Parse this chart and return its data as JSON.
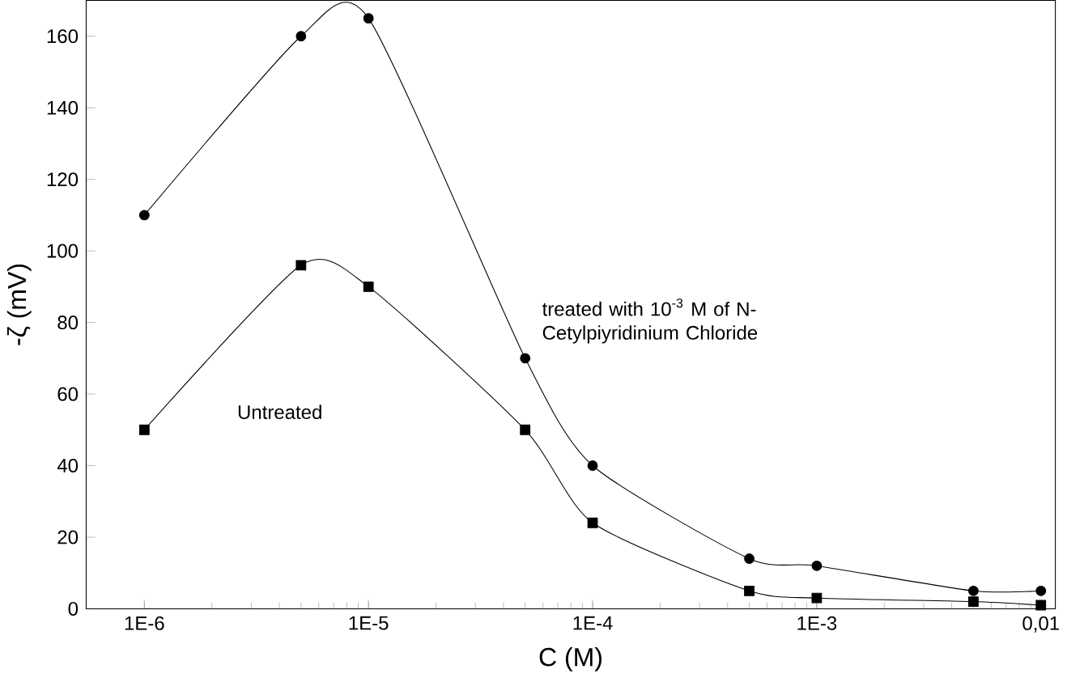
{
  "chart_data": {
    "type": "line",
    "xlabel": "C (M)",
    "ylabel": "-ζ (mV)",
    "log": "x",
    "xlim": [
      5.5e-07,
      0.0116
    ],
    "ylim": [
      0,
      170
    ],
    "xticks": [
      {
        "value": 1e-06,
        "label": "1E-6"
      },
      {
        "value": 1e-05,
        "label": "1E-5"
      },
      {
        "value": 0.0001,
        "label": "1E-4"
      },
      {
        "value": 0.001,
        "label": "1E-3"
      },
      {
        "value": 0.01,
        "label": "0,01"
      }
    ],
    "yticks": [
      0,
      20,
      40,
      60,
      80,
      100,
      120,
      140,
      160
    ],
    "x": [
      1e-06,
      5e-06,
      1e-05,
      5e-05,
      0.0001,
      0.0005,
      0.001,
      0.005,
      0.01
    ],
    "grid": false,
    "legend": false,
    "line_style": "solid",
    "series": [
      {
        "name": "treated with 10$^{-3}$ M of N-Cetylpiyridinium Chloride",
        "color": "#000000",
        "marker": "circle",
        "values": [
          110,
          160,
          165,
          70,
          40,
          14,
          12,
          5,
          5
        ]
      },
      {
        "name": "Untreated",
        "color": "#000000",
        "marker": "square",
        "values": [
          50,
          96,
          90,
          50,
          24,
          5,
          3,
          2,
          1
        ]
      }
    ]
  }
}
